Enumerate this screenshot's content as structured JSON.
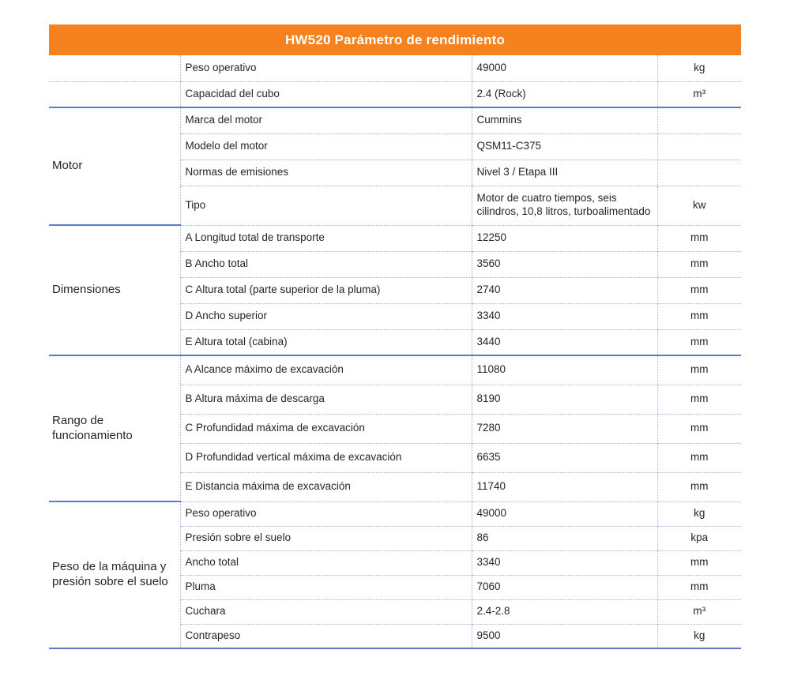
{
  "page": {
    "title": "HW520 Parámetro de rendimiento"
  },
  "colors": {
    "header_bg": "#F6821F",
    "header_text": "#FFFFFF",
    "solid_line": "#5B7CC6",
    "dotted_line": "#9FB5E0",
    "text": "#262626"
  },
  "table": {
    "sections": [
      {
        "group": "",
        "rows": [
          {
            "param": "Peso operativo",
            "value": "49000",
            "unit": "kg"
          },
          {
            "param": "Capacidad del cubo",
            "value": "2.4 (Rock)",
            "unit": "m³"
          }
        ]
      },
      {
        "group": "Motor",
        "rows": [
          {
            "param": "Marca del motor",
            "value": "Cummins",
            "unit": ""
          },
          {
            "param": "Modelo del motor",
            "value": "QSM11-C375",
            "unit": ""
          },
          {
            "param": "Normas de emisiones",
            "value": "Nivel 3 / Etapa III",
            "unit": ""
          },
          {
            "param": "Tipo",
            "value": "Motor de cuatro tiempos, seis cilindros, 10,8 litros, turboalimentado",
            "unit": "kw"
          }
        ]
      },
      {
        "group": "Dimensiones",
        "rows": [
          {
            "param": "A Longitud total de transporte",
            "value": "12250",
            "unit": "mm"
          },
          {
            "param": "B Ancho total",
            "value": "3560",
            "unit": "mm"
          },
          {
            "param": "C Altura total (parte superior de la pluma)",
            "value": "2740",
            "unit": "mm"
          },
          {
            "param": "D Ancho superior",
            "value": "3340",
            "unit": "mm"
          },
          {
            "param": "E Altura total (cabina)",
            "value": "3440",
            "unit": "mm"
          }
        ]
      },
      {
        "group": "Rango de funcionamiento",
        "rows": [
          {
            "param": "A Alcance máximo de excavación",
            "value": "11080",
            "unit": "mm"
          },
          {
            "param": "B Altura máxima de descarga",
            "value": "8190",
            "unit": "mm"
          },
          {
            "param": "C Profundidad máxima de excavación",
            "value": "7280",
            "unit": "mm"
          },
          {
            "param": "D Profundidad vertical máxima de excavación",
            "value": "6635",
            "unit": "mm"
          },
          {
            "param": "E Distancia máxima de excavación",
            "value": "11740",
            "unit": "mm"
          }
        ]
      },
      {
        "group": "Peso de la máquina y presión sobre el suelo",
        "rows": [
          {
            "param": "Peso operativo",
            "value": "49000",
            "unit": "kg"
          },
          {
            "param": "Presión sobre el suelo",
            "value": "86",
            "unit": "kpa"
          },
          {
            "param": "Ancho total",
            "value": "3340",
            "unit": "mm"
          },
          {
            "param": "Pluma",
            "value": "7060",
            "unit": "mm"
          },
          {
            "param": "Cuchara",
            "value": "2.4-2.8",
            "unit": "m³"
          },
          {
            "param": "Contrapeso",
            "value": "9500",
            "unit": "kg"
          }
        ]
      }
    ]
  }
}
